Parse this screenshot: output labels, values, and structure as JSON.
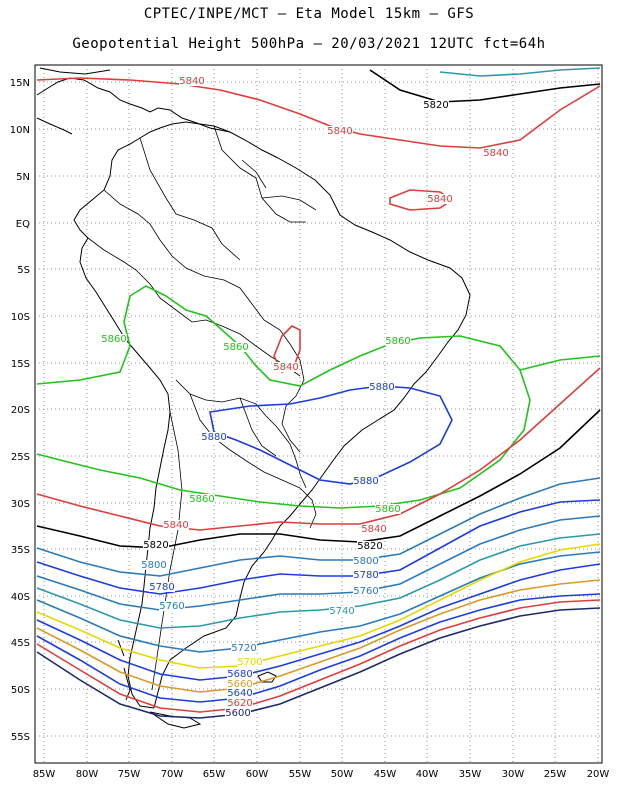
{
  "header": {
    "line1": "CPTEC/INPE/MCT –  Eta Model 15km – GFS",
    "line2": "Geopotential Height 500hPa – 20/03/2021 12UTC fct=64h"
  },
  "lat_ticks": [
    "15N",
    "10N",
    "5N",
    "EQ",
    "5S",
    "10S",
    "15S",
    "20S",
    "25S",
    "30S",
    "35S",
    "40S",
    "45S",
    "50S",
    "55S"
  ],
  "lon_ticks": [
    "85W",
    "80W",
    "75W",
    "70W",
    "65W",
    "60W",
    "55W",
    "50W",
    "45W",
    "40W",
    "35W",
    "30W",
    "25W",
    "20W"
  ],
  "contour_labels": [
    {
      "text": "5840",
      "color": "#e03c3c"
    },
    {
      "text": "5840",
      "color": "#e03c3c"
    },
    {
      "text": "5840",
      "color": "#e03c3c"
    },
    {
      "text": "5840",
      "color": "#e03c3c"
    },
    {
      "text": "5820",
      "color": "#000000"
    },
    {
      "text": "5840",
      "color": "#e03c3c"
    },
    {
      "text": "5860",
      "color": "#22c41c"
    },
    {
      "text": "5860",
      "color": "#22c41c"
    },
    {
      "text": "5860",
      "color": "#22c41c"
    },
    {
      "text": "5880",
      "color": "#1c3ce0"
    },
    {
      "text": "5880",
      "color": "#1c3ce0"
    },
    {
      "text": "5880",
      "color": "#1c3ce0"
    },
    {
      "text": "5860",
      "color": "#22c41c"
    },
    {
      "text": "5860",
      "color": "#22c41c"
    },
    {
      "text": "5840",
      "color": "#e03c3c"
    },
    {
      "text": "5840",
      "color": "#e03c3c"
    },
    {
      "text": "5820",
      "color": "#000000"
    },
    {
      "text": "5820",
      "color": "#000000"
    },
    {
      "text": "5800",
      "color": "#2a7ab8"
    },
    {
      "text": "5800",
      "color": "#2a7ab8"
    },
    {
      "text": "5780",
      "color": "#1c3ce0"
    },
    {
      "text": "5780",
      "color": "#1c3ce0"
    },
    {
      "text": "5760",
      "color": "#2a7ab8"
    },
    {
      "text": "5760",
      "color": "#2a7ab8"
    },
    {
      "text": "5740",
      "color": "#2a9aaa"
    },
    {
      "text": "5720",
      "color": "#2a7ab8"
    },
    {
      "text": "5700",
      "color": "#e6d800"
    },
    {
      "text": "5680",
      "color": "#1c3ce0"
    },
    {
      "text": "5660",
      "color": "#d89a28"
    },
    {
      "text": "5640",
      "color": "#1c3ce0"
    },
    {
      "text": "5620",
      "color": "#e03c3c"
    },
    {
      "text": "5600",
      "color": "#1c2a6a"
    }
  ]
}
